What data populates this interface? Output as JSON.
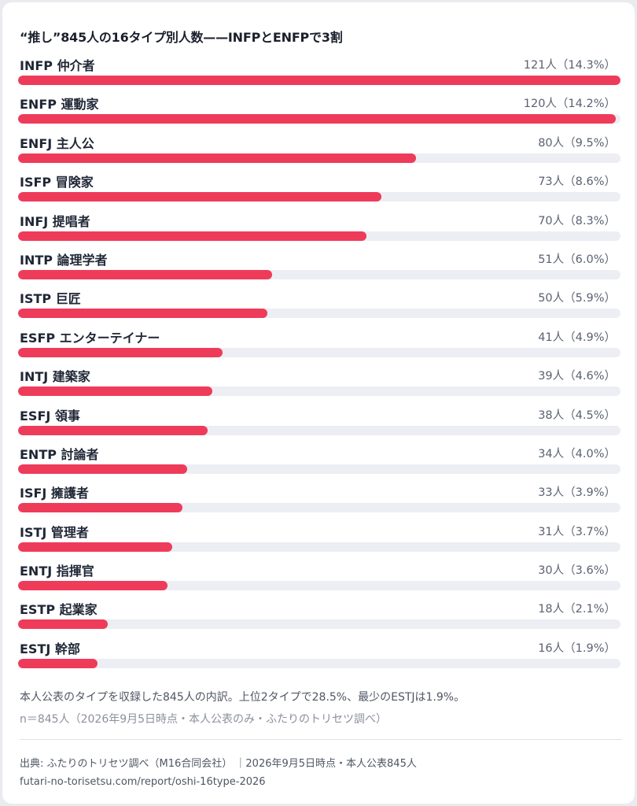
{
  "page": {
    "title": "“推し”845人の16タイプ別人数——INFPとENFPで3割",
    "note": "本人公表のタイプを収録した845人の内訳。上位2タイプで28.5%、最少のESTJは1.9%。",
    "n_note": "n＝845人（2026年9月5日時点・本人公表のみ・ふたりのトリセツ調べ）",
    "source": "出典: ふたりのトリセツ調べ（M16合同会社） ｜2026年9月5日時点・本人公表845人",
    "url": "futari-no-torisetsu.com/report/oshi-16type-2026"
  },
  "colors": {
    "bar": "#ef3b5a",
    "track": "#eceef3"
  },
  "chart_data": {
    "type": "bar",
    "orientation": "horizontal",
    "title": "“推し”845人の16タイプ別人数——INFPとENFPで3割",
    "xlim": [
      0,
      121
    ],
    "categories": [
      "INFP 仲介者",
      "ENFP 運動家",
      "ENFJ 主人公",
      "ISFP 冒険家",
      "INFJ 提唱者",
      "INTP 論理学者",
      "ISTP 巨匠",
      "ESFP エンターテイナー",
      "INTJ 建築家",
      "ESFJ 領事",
      "ENTP 討論者",
      "ISFJ 擁護者",
      "ISTJ 管理者",
      "ENTJ 指揮官",
      "ESTP 起業家",
      "ESTJ 幹部"
    ],
    "values": [
      121,
      120,
      80,
      73,
      70,
      51,
      50,
      41,
      39,
      38,
      34,
      33,
      31,
      30,
      18,
      16
    ],
    "value_labels": [
      "121人（14.3%）",
      "120人（14.2%）",
      "80人（9.5%）",
      "73人（8.6%）",
      "70人（8.3%）",
      "51人（6.0%）",
      "50人（5.9%）",
      "41人（4.9%）",
      "39人（4.6%）",
      "38人（4.5%）",
      "34人（4.0%）",
      "33人（3.9%）",
      "31人（3.7%）",
      "30人（3.6%）",
      "18人（2.1%）",
      "16人（1.9%）"
    ]
  }
}
